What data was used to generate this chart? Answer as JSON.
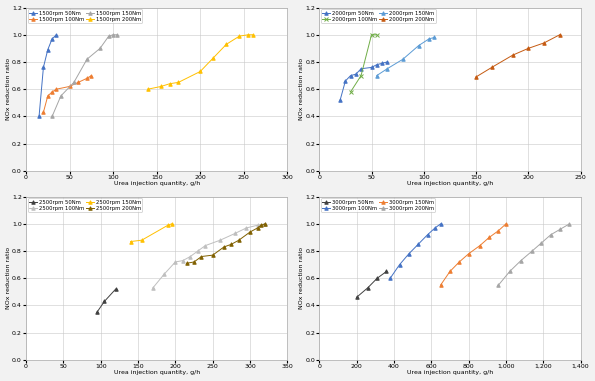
{
  "subplots": [
    {
      "xlabel": "Urea injection quantity, g/h",
      "ylabel": "NOx reduction ratio",
      "xlim": [
        0,
        300
      ],
      "ylim": [
        0.0,
        1.2
      ],
      "xticks": [
        0,
        50,
        100,
        150,
        200,
        250,
        300
      ],
      "yticks": [
        0.0,
        0.2,
        0.4,
        0.6,
        0.8,
        1.0,
        1.2
      ],
      "series": [
        {
          "label": "1500rpm 50Nm",
          "color": "#4472C4",
          "marker": "^",
          "x": [
            15,
            20,
            25,
            30,
            35
          ],
          "y": [
            0.4,
            0.76,
            0.89,
            0.97,
            1.0
          ]
        },
        {
          "label": "1500rpm 100Nm",
          "color": "#ED7D31",
          "marker": "^",
          "x": [
            20,
            25,
            30,
            35,
            50,
            60,
            70,
            75
          ],
          "y": [
            0.43,
            0.55,
            0.58,
            0.6,
            0.62,
            0.65,
            0.68,
            0.7
          ]
        },
        {
          "label": "1500rpm 150Nm",
          "color": "#A5A5A5",
          "marker": "^",
          "x": [
            30,
            40,
            55,
            70,
            85,
            95,
            100,
            105
          ],
          "y": [
            0.4,
            0.55,
            0.65,
            0.82,
            0.9,
            0.99,
            1.0,
            1.0
          ]
        },
        {
          "label": "1500rpm 200Nm",
          "color": "#FFC000",
          "marker": "^",
          "x": [
            140,
            155,
            165,
            175,
            200,
            215,
            230,
            245,
            255,
            260
          ],
          "y": [
            0.6,
            0.62,
            0.64,
            0.65,
            0.73,
            0.83,
            0.93,
            0.99,
            1.0,
            1.0
          ]
        }
      ]
    },
    {
      "xlabel": "Urea injection quantity, g/h",
      "ylabel": "NOx reduction ratio",
      "xlim": [
        0,
        250
      ],
      "ylim": [
        0.0,
        1.2
      ],
      "xticks": [
        0,
        50,
        100,
        150,
        200,
        250
      ],
      "yticks": [
        0.0,
        0.2,
        0.4,
        0.6,
        0.8,
        1.0,
        1.2
      ],
      "series": [
        {
          "label": "2000rpm 50Nm",
          "color": "#4472C4",
          "marker": "^",
          "x": [
            20,
            25,
            30,
            35,
            40,
            50,
            55,
            60,
            65
          ],
          "y": [
            0.52,
            0.66,
            0.7,
            0.71,
            0.75,
            0.76,
            0.78,
            0.79,
            0.8
          ]
        },
        {
          "label": "2000rpm 100Nm",
          "color": "#70AD47",
          "marker": "x",
          "x": [
            30,
            40,
            50,
            55
          ],
          "y": [
            0.58,
            0.7,
            1.0,
            1.0
          ]
        },
        {
          "label": "2000rpm 150Nm",
          "color": "#5B9BD5",
          "marker": "^",
          "x": [
            55,
            65,
            80,
            95,
            105,
            110
          ],
          "y": [
            0.7,
            0.75,
            0.82,
            0.92,
            0.97,
            0.98
          ]
        },
        {
          "label": "2000rpm 200Nm",
          "color": "#C55A11",
          "marker": "^",
          "x": [
            150,
            165,
            185,
            200,
            215,
            230
          ],
          "y": [
            0.69,
            0.76,
            0.85,
            0.9,
            0.94,
            1.0
          ]
        }
      ]
    },
    {
      "xlabel": "Urea injection quantity, g/h",
      "ylabel": "NOx reduction ratio",
      "xlim": [
        0,
        350
      ],
      "ylim": [
        0.0,
        1.2
      ],
      "xticks": [
        0,
        50,
        100,
        150,
        200,
        250,
        300,
        350
      ],
      "yticks": [
        0.0,
        0.2,
        0.4,
        0.6,
        0.8,
        1.0,
        1.2
      ],
      "series": [
        {
          "label": "2500rpm 50Nm",
          "color": "#404040",
          "marker": "^",
          "x": [
            95,
            105,
            120
          ],
          "y": [
            0.35,
            0.43,
            0.52
          ]
        },
        {
          "label": "2500rpm 100Nm",
          "color": "#BFBFBF",
          "marker": "^",
          "x": [
            170,
            185,
            200,
            210,
            220,
            230,
            240,
            260,
            280,
            295,
            310,
            320
          ],
          "y": [
            0.53,
            0.63,
            0.72,
            0.73,
            0.76,
            0.8,
            0.84,
            0.88,
            0.93,
            0.97,
            0.99,
            1.0
          ]
        },
        {
          "label": "2500rpm 150Nm",
          "color": "#FFC000",
          "marker": "^",
          "x": [
            140,
            155,
            190,
            195
          ],
          "y": [
            0.87,
            0.88,
            0.99,
            1.0
          ]
        },
        {
          "label": "2500rpm 200Nm",
          "color": "#806000",
          "marker": "^",
          "x": [
            215,
            225,
            235,
            250,
            265,
            275,
            285,
            300,
            310,
            315,
            320
          ],
          "y": [
            0.71,
            0.72,
            0.76,
            0.77,
            0.83,
            0.85,
            0.88,
            0.94,
            0.97,
            0.99,
            1.0
          ]
        }
      ]
    },
    {
      "xlabel": "Urea injection quantity, g/h",
      "ylabel": "NOx reduction ratio",
      "xlim": [
        0,
        1400
      ],
      "ylim": [
        0.0,
        1.2
      ],
      "xticks": [
        0,
        200,
        400,
        600,
        800,
        1000,
        1200,
        1400
      ],
      "yticks": [
        0.0,
        0.2,
        0.4,
        0.6,
        0.8,
        1.0,
        1.2
      ],
      "use_comma_format": true,
      "series": [
        {
          "label": "3000rpm 50Nm",
          "color": "#404040",
          "marker": "^",
          "x": [
            200,
            260,
            310,
            360
          ],
          "y": [
            0.46,
            0.53,
            0.6,
            0.65
          ]
        },
        {
          "label": "3000rpm 100Nm",
          "color": "#4472C4",
          "marker": "^",
          "x": [
            380,
            430,
            480,
            530,
            580,
            620,
            650
          ],
          "y": [
            0.6,
            0.7,
            0.78,
            0.85,
            0.92,
            0.97,
            1.0
          ]
        },
        {
          "label": "3000rpm 150Nm",
          "color": "#ED7D31",
          "marker": "^",
          "x": [
            650,
            700,
            750,
            800,
            860,
            910,
            960,
            1000
          ],
          "y": [
            0.55,
            0.65,
            0.72,
            0.78,
            0.84,
            0.9,
            0.95,
            1.0
          ]
        },
        {
          "label": "3000rpm 200Nm",
          "color": "#A5A5A5",
          "marker": "^",
          "x": [
            960,
            1020,
            1080,
            1140,
            1190,
            1240,
            1290,
            1340
          ],
          "y": [
            0.55,
            0.65,
            0.73,
            0.8,
            0.86,
            0.92,
            0.96,
            1.0
          ]
        }
      ]
    }
  ],
  "fig_bg": "#F2F2F2"
}
